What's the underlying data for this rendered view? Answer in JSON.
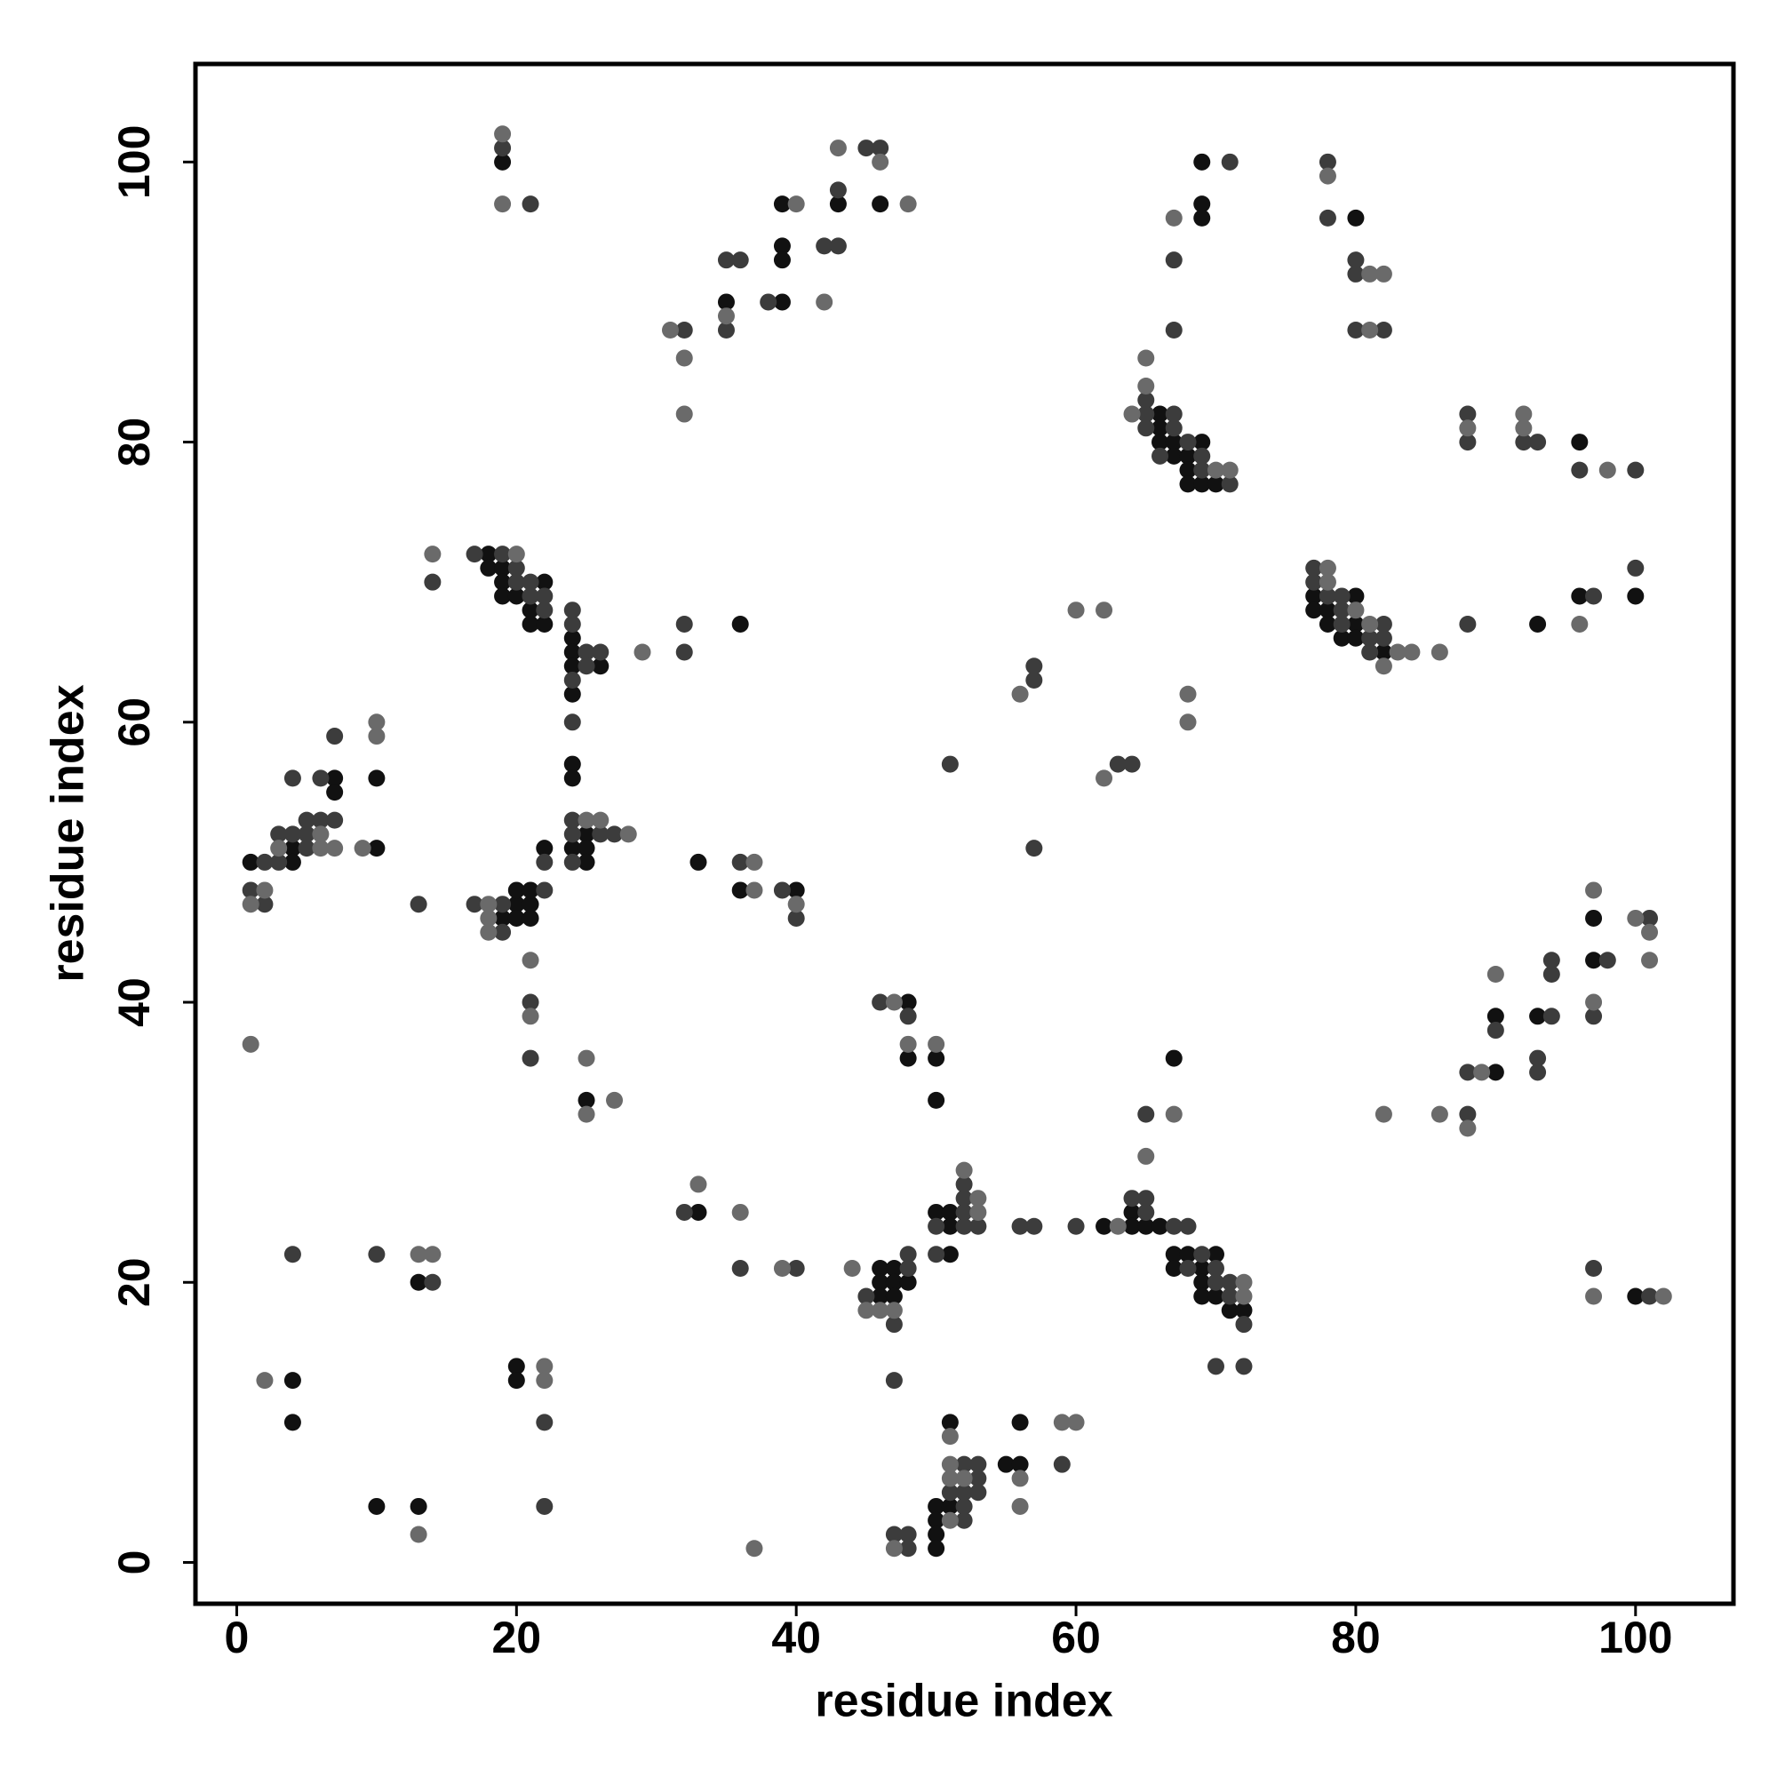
{
  "chart_data": {
    "type": "scatter",
    "xlabel": "residue index",
    "ylabel": "residue index",
    "xlim": [
      -2.95,
      107
    ],
    "ylim": [
      -2.95,
      107
    ],
    "xticks": [
      0,
      20,
      40,
      60,
      80,
      100
    ],
    "yticks": [
      0,
      20,
      40,
      60,
      80,
      100
    ],
    "series": [
      {
        "color": "#111111",
        "x": [
          19,
          35,
          39,
          39,
          39,
          39,
          43,
          46,
          69,
          69,
          69,
          80,
          66,
          66,
          66,
          67,
          69,
          67,
          68,
          68,
          68,
          69,
          70,
          96,
          18,
          18,
          19,
          19,
          22,
          19,
          20,
          21,
          21,
          22,
          24,
          24,
          24,
          26,
          24,
          36,
          7,
          7,
          10,
          4,
          10,
          1,
          4,
          24,
          24,
          25,
          24,
          25,
          22,
          25,
          20,
          21,
          19,
          20,
          21,
          20,
          21,
          33,
          36,
          40,
          25,
          77,
          80,
          77,
          78,
          78,
          80,
          79,
          80,
          82,
          93,
          96,
          100,
          97,
          97,
          90,
          93,
          90,
          48,
          48,
          50,
          50,
          67,
          50,
          51,
          51,
          62,
          64,
          64,
          65,
          66,
          51,
          46,
          47,
          46,
          47,
          48,
          46,
          47,
          67,
          68,
          70,
          67,
          69,
          69,
          69,
          70,
          71,
          72,
          13,
          4,
          4,
          20,
          20,
          10,
          13,
          33,
          51,
          50,
          51,
          50,
          50,
          50,
          55,
          56,
          56,
          100
        ],
        "values": [
          100,
          90,
          90,
          97,
          94,
          93,
          97,
          97,
          100,
          97,
          96,
          96,
          82,
          81,
          80,
          80,
          80,
          79,
          79,
          78,
          77,
          77,
          77,
          80,
          72,
          71,
          71,
          70,
          70,
          69,
          69,
          68,
          67,
          67,
          66,
          65,
          64,
          64,
          62,
          67,
          56,
          55,
          56,
          51,
          51,
          50,
          50,
          57,
          56,
          52,
          51,
          51,
          51,
          50,
          47,
          47,
          46,
          46,
          46,
          48,
          48,
          50,
          48,
          48,
          33,
          69,
          69,
          68,
          68,
          67,
          67,
          66,
          66,
          65,
          67,
          69,
          69,
          46,
          43,
          39,
          39,
          35,
          40,
          36,
          36,
          33,
          36,
          25,
          25,
          24,
          24,
          25,
          24,
          24,
          24,
          22,
          21,
          21,
          20,
          20,
          20,
          19,
          19,
          22,
          22,
          22,
          21,
          21,
          20,
          19,
          19,
          18,
          18,
          20,
          13,
          10,
          14,
          13,
          4,
          4,
          25,
          10,
          4,
          4,
          3,
          2,
          1,
          7,
          7,
          10,
          19
        ]
      },
      {
        "color": "#3c3c3c",
        "x": [
          19,
          21,
          32,
          35,
          36,
          35,
          38,
          42,
          43,
          45,
          46,
          43,
          71,
          67,
          67,
          78,
          78,
          80,
          80,
          80,
          82,
          65,
          65,
          67,
          65,
          67,
          68,
          66,
          69,
          69,
          71,
          88,
          88,
          92,
          93,
          96,
          100,
          14,
          17,
          19,
          20,
          20,
          21,
          21,
          22,
          22,
          24,
          24,
          25,
          26,
          25,
          24,
          24,
          32,
          32,
          7,
          4,
          6,
          5,
          6,
          7,
          4,
          3,
          5,
          5,
          2,
          3,
          1,
          2,
          24,
          24,
          26,
          27,
          24,
          22,
          17,
          19,
          22,
          19,
          13,
          21,
          21,
          36,
          39,
          40,
          51,
          57,
          57,
          57,
          63,
          64,
          77,
          77,
          78,
          79,
          79,
          79,
          82,
          81,
          82,
          81,
          88,
          97,
          100,
          101,
          98,
          94,
          94,
          97,
          94,
          90,
          93,
          88,
          93,
          88,
          46,
          48,
          65,
          52,
          52,
          52,
          50,
          52,
          53,
          56,
          57,
          60,
          64,
          65,
          65,
          67,
          68,
          50,
          48,
          48,
          45,
          47,
          47,
          40,
          36,
          69,
          68,
          70,
          70,
          71,
          71,
          72,
          70,
          72,
          4,
          10,
          14,
          22,
          22,
          32,
          52,
          53,
          53,
          51,
          52,
          53,
          52,
          52,
          47,
          48,
          48,
          59,
          97,
          101
        ],
        "values": [
          101,
          97,
          88,
          93,
          93,
          88,
          90,
          94,
          94,
          101,
          101,
          98,
          100,
          93,
          88,
          100,
          96,
          93,
          92,
          88,
          88,
          83,
          82,
          82,
          81,
          81,
          80,
          79,
          79,
          78,
          77,
          82,
          80,
          80,
          80,
          78,
          78,
          70,
          72,
          72,
          71,
          70,
          70,
          69,
          69,
          68,
          68,
          67,
          65,
          65,
          64,
          63,
          60,
          67,
          65,
          59,
          56,
          56,
          53,
          53,
          53,
          52,
          52,
          52,
          51,
          50,
          50,
          48,
          47,
          53,
          52,
          52,
          52,
          50,
          50,
          47,
          47,
          48,
          45,
          47,
          40,
          36,
          50,
          48,
          46,
          57,
          51,
          63,
          64,
          57,
          57,
          71,
          70,
          69,
          69,
          68,
          67,
          67,
          66,
          66,
          65,
          67,
          69,
          71,
          46,
          43,
          43,
          42,
          39,
          39,
          38,
          36,
          35,
          35,
          32,
          40,
          39,
          32,
          27,
          26,
          25,
          24,
          24,
          24,
          24,
          24,
          24,
          26,
          26,
          25,
          24,
          24,
          22,
          22,
          21,
          19,
          17,
          13,
          21,
          21,
          22,
          21,
          21,
          20,
          20,
          19,
          17,
          14,
          14,
          22,
          22,
          20,
          10,
          4,
          25,
          7,
          7,
          6,
          5,
          5,
          5,
          4,
          3,
          2,
          2,
          1,
          7,
          21,
          19
        ]
      },
      {
        "color": "#6a6a6a",
        "x": [
          19,
          19,
          31,
          32,
          32,
          35,
          40,
          42,
          43,
          46,
          48,
          67,
          78,
          81,
          82,
          81,
          65,
          65,
          64,
          70,
          71,
          88,
          92,
          92,
          98,
          14,
          20,
          29,
          10,
          10,
          6,
          3,
          6,
          7,
          9,
          2,
          1,
          1,
          25,
          26,
          28,
          18,
          18,
          18,
          21,
          21,
          37,
          37,
          40,
          25,
          25,
          27,
          56,
          60,
          62,
          62,
          68,
          68,
          78,
          78,
          80,
          81,
          83,
          84,
          86,
          82,
          96,
          97,
          100,
          101,
          101,
          90,
          97,
          89,
          82,
          86,
          88,
          47,
          48,
          50,
          67,
          65,
          52,
          53,
          53,
          63,
          45,
          46,
          47,
          44,
          39,
          72,
          72,
          13,
          14,
          2,
          22,
          22,
          13,
          33,
          36,
          37,
          51,
          51,
          51,
          52,
          51,
          47,
          56,
          56,
          59,
          60,
          97,
          102
        ],
        "values": [
          102,
          97,
          88,
          86,
          82,
          89,
          97,
          90,
          101,
          100,
          97,
          96,
          99,
          92,
          92,
          88,
          86,
          84,
          82,
          78,
          78,
          81,
          82,
          81,
          78,
          72,
          72,
          65,
          60,
          59,
          52,
          51,
          51,
          51,
          51,
          48,
          47,
          37,
          53,
          53,
          52,
          47,
          46,
          45,
          43,
          39,
          50,
          48,
          47,
          36,
          32,
          33,
          62,
          68,
          68,
          56,
          62,
          60,
          71,
          70,
          68,
          67,
          65,
          65,
          65,
          64,
          67,
          48,
          46,
          45,
          43,
          42,
          40,
          35,
          32,
          32,
          31,
          40,
          37,
          37,
          32,
          29,
          28,
          26,
          25,
          24,
          18,
          18,
          18,
          21,
          21,
          20,
          19,
          22,
          22,
          13,
          14,
          13,
          2,
          27,
          25,
          1,
          9,
          7,
          6,
          6,
          3,
          1,
          6,
          4,
          10,
          10,
          19,
          19
        ]
      }
    ]
  }
}
